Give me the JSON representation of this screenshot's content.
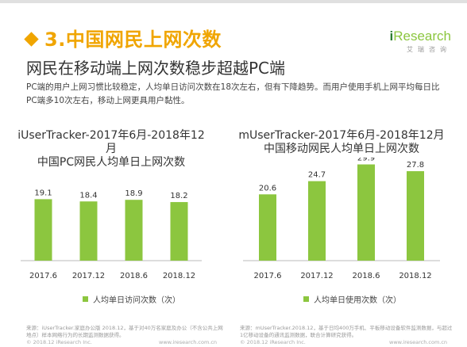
{
  "header": {
    "section_title": "3.中国网民上网次数",
    "subtitle": "网民在移动端上网次数稳步超越PC端",
    "description": "PC端的用户上网习惯比较稳定，人均单日访问次数在18次左右，但有下降趋势。而用户使用手机上网平均每日比PC端多10次左右，移动上网更具用户黏性。"
  },
  "logo": {
    "brand_i": "i",
    "brand_rest": "Research",
    "cn": "艾瑞咨询"
  },
  "colors": {
    "accent": "#f0a500",
    "bar": "#8cc63f",
    "label": "#333333"
  },
  "chart_data": [
    {
      "type": "bar",
      "title": "iUserTracker-2017年6月-2018年12月",
      "subtitle": "中国PC网民人均单日上网次数",
      "categories": [
        "2017.6",
        "2017.12",
        "2018.6",
        "2018.12"
      ],
      "series": [
        {
          "name": "人均单日访问次数（次）",
          "values": [
            19.1,
            18.4,
            18.9,
            18.2
          ]
        }
      ],
      "ylim": [
        0,
        32
      ],
      "grid": false,
      "legend": "bottom"
    },
    {
      "type": "bar",
      "title": "mUserTracker-2017年6月-2018年12月",
      "subtitle": "中国移动网民人均单日上网次数",
      "categories": [
        "2017.6",
        "2017.12",
        "2018.6",
        "2018.12"
      ],
      "series": [
        {
          "name": "人均单日使用次数（次）",
          "values": [
            20.6,
            24.7,
            29.9,
            27.8
          ]
        }
      ],
      "ylim": [
        0,
        32
      ],
      "grid": false,
      "legend": "bottom"
    }
  ],
  "footer": {
    "source_left": "来源：iUserTracker.家庭办公版 2018.12，基于对40万名家庭及办公（不含公共上网地点）样本网络行为的长期监测数据获得。",
    "source_right": "来源：mUserTracker.2018.12，基于日均400万手机、平板移动设备软件监测数据，与超过1亿移动设备的通讯监测数据，联合计算研究获得。",
    "copyright_left": "© 2018.12 iResearch Inc.",
    "copyright_right": "© 2018.12 iResearch Inc.",
    "url_left": "www.iresearch.com.cn",
    "url_right": "www.iresearch.com.cn"
  }
}
